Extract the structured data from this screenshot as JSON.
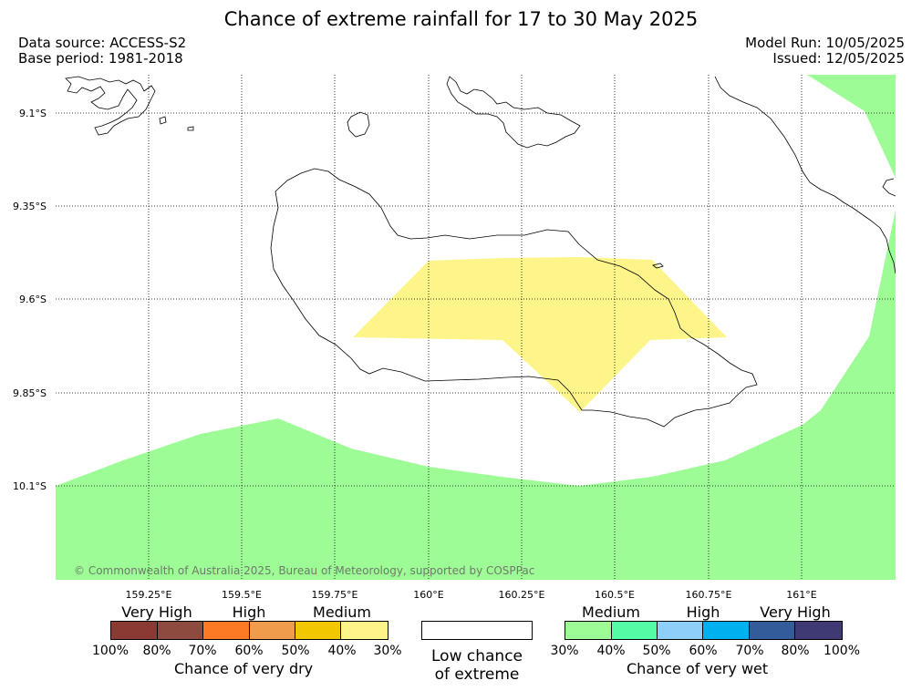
{
  "header": {
    "title": "Chance of extreme rainfall for 17 to 30 May 2025",
    "data_source": "Data source: ACCESS-S2",
    "base_period": "Base period: 1981-2018",
    "model_run": "Model Run: 10/05/2025",
    "issued": "Issued: 12/05/2025"
  },
  "map": {
    "copyright": "© Commonwealth of Australia 2025, Bureau of Meteorology, supported by COSPPac",
    "lat_labels": [
      "9.1°S",
      "9.35°S",
      "9.6°S",
      "9.85°S",
      "10.1°S"
    ],
    "lon_labels": [
      "159.25°E",
      "159.5°E",
      "159.75°E",
      "160°E",
      "160.25°E",
      "160.5°E",
      "160.75°E",
      "161°E"
    ],
    "colors": {
      "wet_30_40": "#9efc97",
      "dry_30_40": "#fdf58a",
      "coast": "#000000",
      "grid": "#000000"
    }
  },
  "legend": {
    "dry": {
      "title": "Chance of very dry",
      "categories": [
        "Very High",
        "High",
        "Medium"
      ],
      "ticks": [
        "100%",
        "80%",
        "70%",
        "60%",
        "50%",
        "40%",
        "30%"
      ],
      "colors": [
        "#8b3a33",
        "#8c4b3e",
        "#fb7a23",
        "#ef9c4c",
        "#f0c700",
        "#fdf58a"
      ]
    },
    "low": {
      "label_line1": "Low chance",
      "label_line2": "of extreme"
    },
    "wet": {
      "title": "Chance of very wet",
      "categories": [
        "Medium",
        "High",
        "Very High"
      ],
      "ticks": [
        "30%",
        "40%",
        "50%",
        "60%",
        "70%",
        "80%",
        "100%"
      ],
      "colors": [
        "#9efc97",
        "#54fca6",
        "#8dcff9",
        "#00b0ef",
        "#325d9a",
        "#3f3a74"
      ]
    }
  }
}
